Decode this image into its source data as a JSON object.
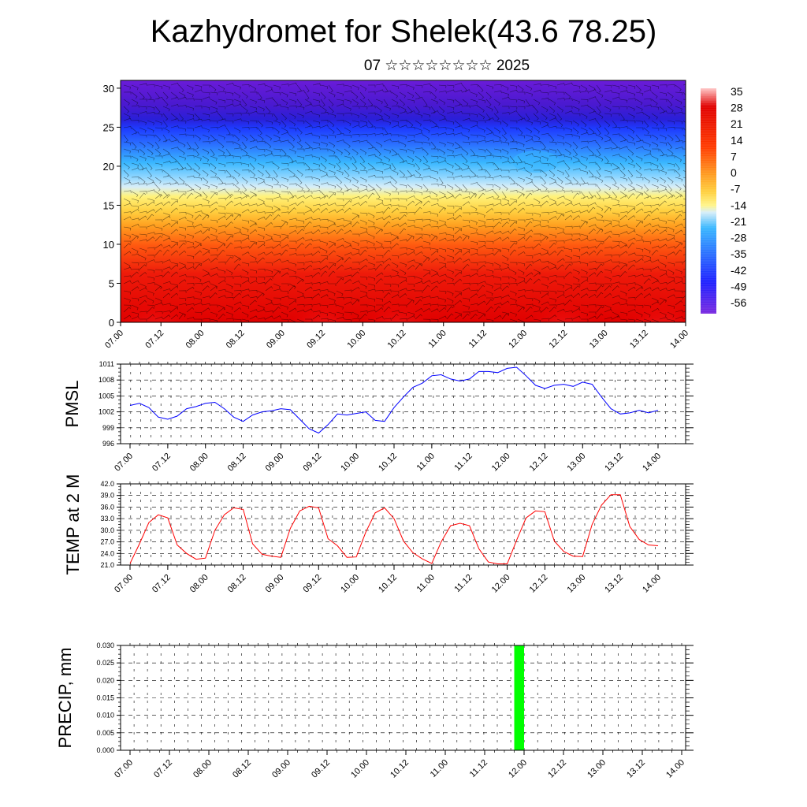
{
  "title": "Kazhydromet for Shelek(43.6 78.25)",
  "subtitle": "07 ☆☆☆☆☆☆☆☆ 2025",
  "chart_data": [
    {
      "type": "heatmap",
      "name": "cross-section",
      "x_ticks": [
        "07.00",
        "07.12",
        "08.00",
        "08.12",
        "09.00",
        "09.12",
        "10.00",
        "10.12",
        "11.00",
        "11.12",
        "12.00",
        "12.12",
        "13.00",
        "13.12",
        "14.00"
      ],
      "y_ticks": [
        "0",
        "5",
        "10",
        "15",
        "20",
        "25",
        "30"
      ],
      "ylim": [
        0,
        31
      ],
      "colorbar_labels": [
        "35",
        "28",
        "21",
        "14",
        "7",
        "0",
        "-7",
        "-14",
        "-21",
        "-28",
        "-35",
        "-42",
        "-49",
        "-56"
      ],
      "colors": {
        "warm": "#e00000",
        "cold": "#6a1bd8",
        "mid": "#fff27a",
        "blue": "#1e3cff",
        "cyan": "#39b7ff"
      }
    },
    {
      "type": "line",
      "ylabel": "PMSL",
      "y_ticks": [
        "996",
        "999",
        "1002",
        "1005",
        "1008",
        "1011"
      ],
      "ylim": [
        996,
        1011
      ],
      "color": "#0000ff",
      "x_ticks": [
        "07.00",
        "07.12",
        "08.00",
        "08.12",
        "09.00",
        "09.12",
        "10.00",
        "10.12",
        "11.00",
        "11.12",
        "12.00",
        "12.12",
        "13.00",
        "13.12",
        "14.00"
      ],
      "values": [
        1003.2,
        1003.6,
        1002.8,
        1001.0,
        1000.6,
        1001.2,
        1002.6,
        1003.0,
        1003.6,
        1003.8,
        1002.6,
        1001.0,
        1000.2,
        1001.4,
        1002.0,
        1002.2,
        1002.6,
        1002.4,
        1000.6,
        998.8,
        998.0,
        999.6,
        1001.6,
        1001.4,
        1001.7,
        1002.0,
        1000.4,
        1000.2,
        1002.8,
        1004.8,
        1006.6,
        1007.4,
        1008.8,
        1009.0,
        1008.2,
        1007.8,
        1008.2,
        1009.6,
        1009.6,
        1009.4,
        1010.2,
        1010.4,
        1008.8,
        1007.0,
        1006.4,
        1007.0,
        1007.2,
        1006.8,
        1007.6,
        1007.2,
        1004.8,
        1002.6,
        1001.6,
        1001.8,
        1002.3,
        1001.8,
        1002.3
      ]
    },
    {
      "type": "line",
      "ylabel": "TEMP at 2 M",
      "y_ticks": [
        "21.0",
        "24.0",
        "27.0",
        "30.0",
        "33.0",
        "36.0",
        "39.0",
        "42.0"
      ],
      "ylim": [
        21,
        42
      ],
      "color": "#ff0000",
      "x_ticks": [
        "07.00",
        "07.12",
        "08.00",
        "08.12",
        "09.00",
        "09.12",
        "10.00",
        "10.12",
        "11.00",
        "11.12",
        "12.00",
        "12.12",
        "13.00",
        "13.12",
        "14.00"
      ],
      "values": [
        21.4,
        26.5,
        32.0,
        34.0,
        33.2,
        26.2,
        24.0,
        22.5,
        22.8,
        30.0,
        34.0,
        35.8,
        35.4,
        26.5,
        23.8,
        23.3,
        23.0,
        30.5,
        35.0,
        36.2,
        35.8,
        27.8,
        26.0,
        23.0,
        23.1,
        29.5,
        34.5,
        35.8,
        33.0,
        27.2,
        24.2,
        22.6,
        21.4,
        27.0,
        31.2,
        31.8,
        31.2,
        25.2,
        21.8,
        21.3,
        21.3,
        27.4,
        33.2,
        35.0,
        34.8,
        27.2,
        24.5,
        23.3,
        23.2,
        31.5,
        36.5,
        39.2,
        39.2,
        31.0,
        27.6,
        26.2,
        26.0
      ]
    },
    {
      "type": "bar",
      "ylabel": "PRECIP, mm",
      "y_ticks": [
        "0.000",
        "0.005",
        "0.010",
        "0.015",
        "0.020",
        "0.025",
        "0.030"
      ],
      "ylim": [
        0,
        0.03
      ],
      "color": "#00ff00",
      "x_ticks": [
        "07.00",
        "07.12",
        "08.00",
        "08.12",
        "09.00",
        "09.12",
        "10.00",
        "10.12",
        "11.00",
        "11.12",
        "12.00",
        "12.12",
        "13.00",
        "13.12",
        "14.00"
      ],
      "bars": [
        {
          "x_index": 39.5,
          "value": 0.03
        }
      ]
    }
  ]
}
